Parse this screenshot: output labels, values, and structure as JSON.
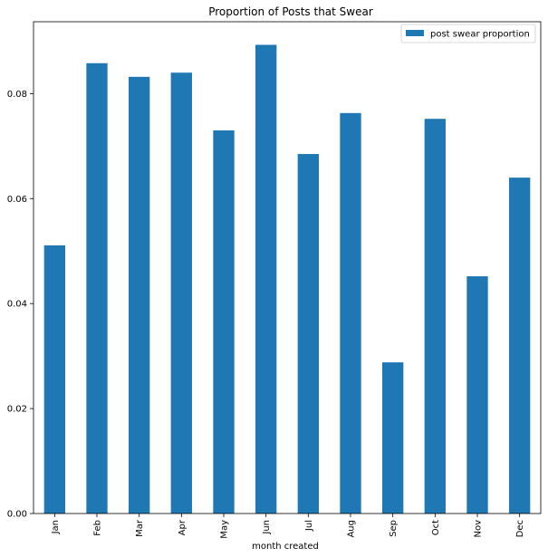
{
  "chart_data": {
    "type": "bar",
    "title": "Proportion of Posts that Swear",
    "xlabel": "month created",
    "ylabel": "",
    "categories": [
      "Jan",
      "Feb",
      "Mar",
      "Apr",
      "May",
      "Jun",
      "Jul",
      "Aug",
      "Sep",
      "Oct",
      "Nov",
      "Dec"
    ],
    "series": [
      {
        "name": "post swear proportion",
        "color": "#1f77b4",
        "values": [
          0.0511,
          0.0858,
          0.0832,
          0.084,
          0.073,
          0.0893,
          0.0685,
          0.0763,
          0.0288,
          0.0752,
          0.0452,
          0.064
        ]
      }
    ],
    "ylim": [
      0,
      0.0937
    ],
    "yticks": [
      "0.00",
      "0.02",
      "0.04",
      "0.06",
      "0.08"
    ],
    "legend_position": "top-right",
    "grid": false
  }
}
